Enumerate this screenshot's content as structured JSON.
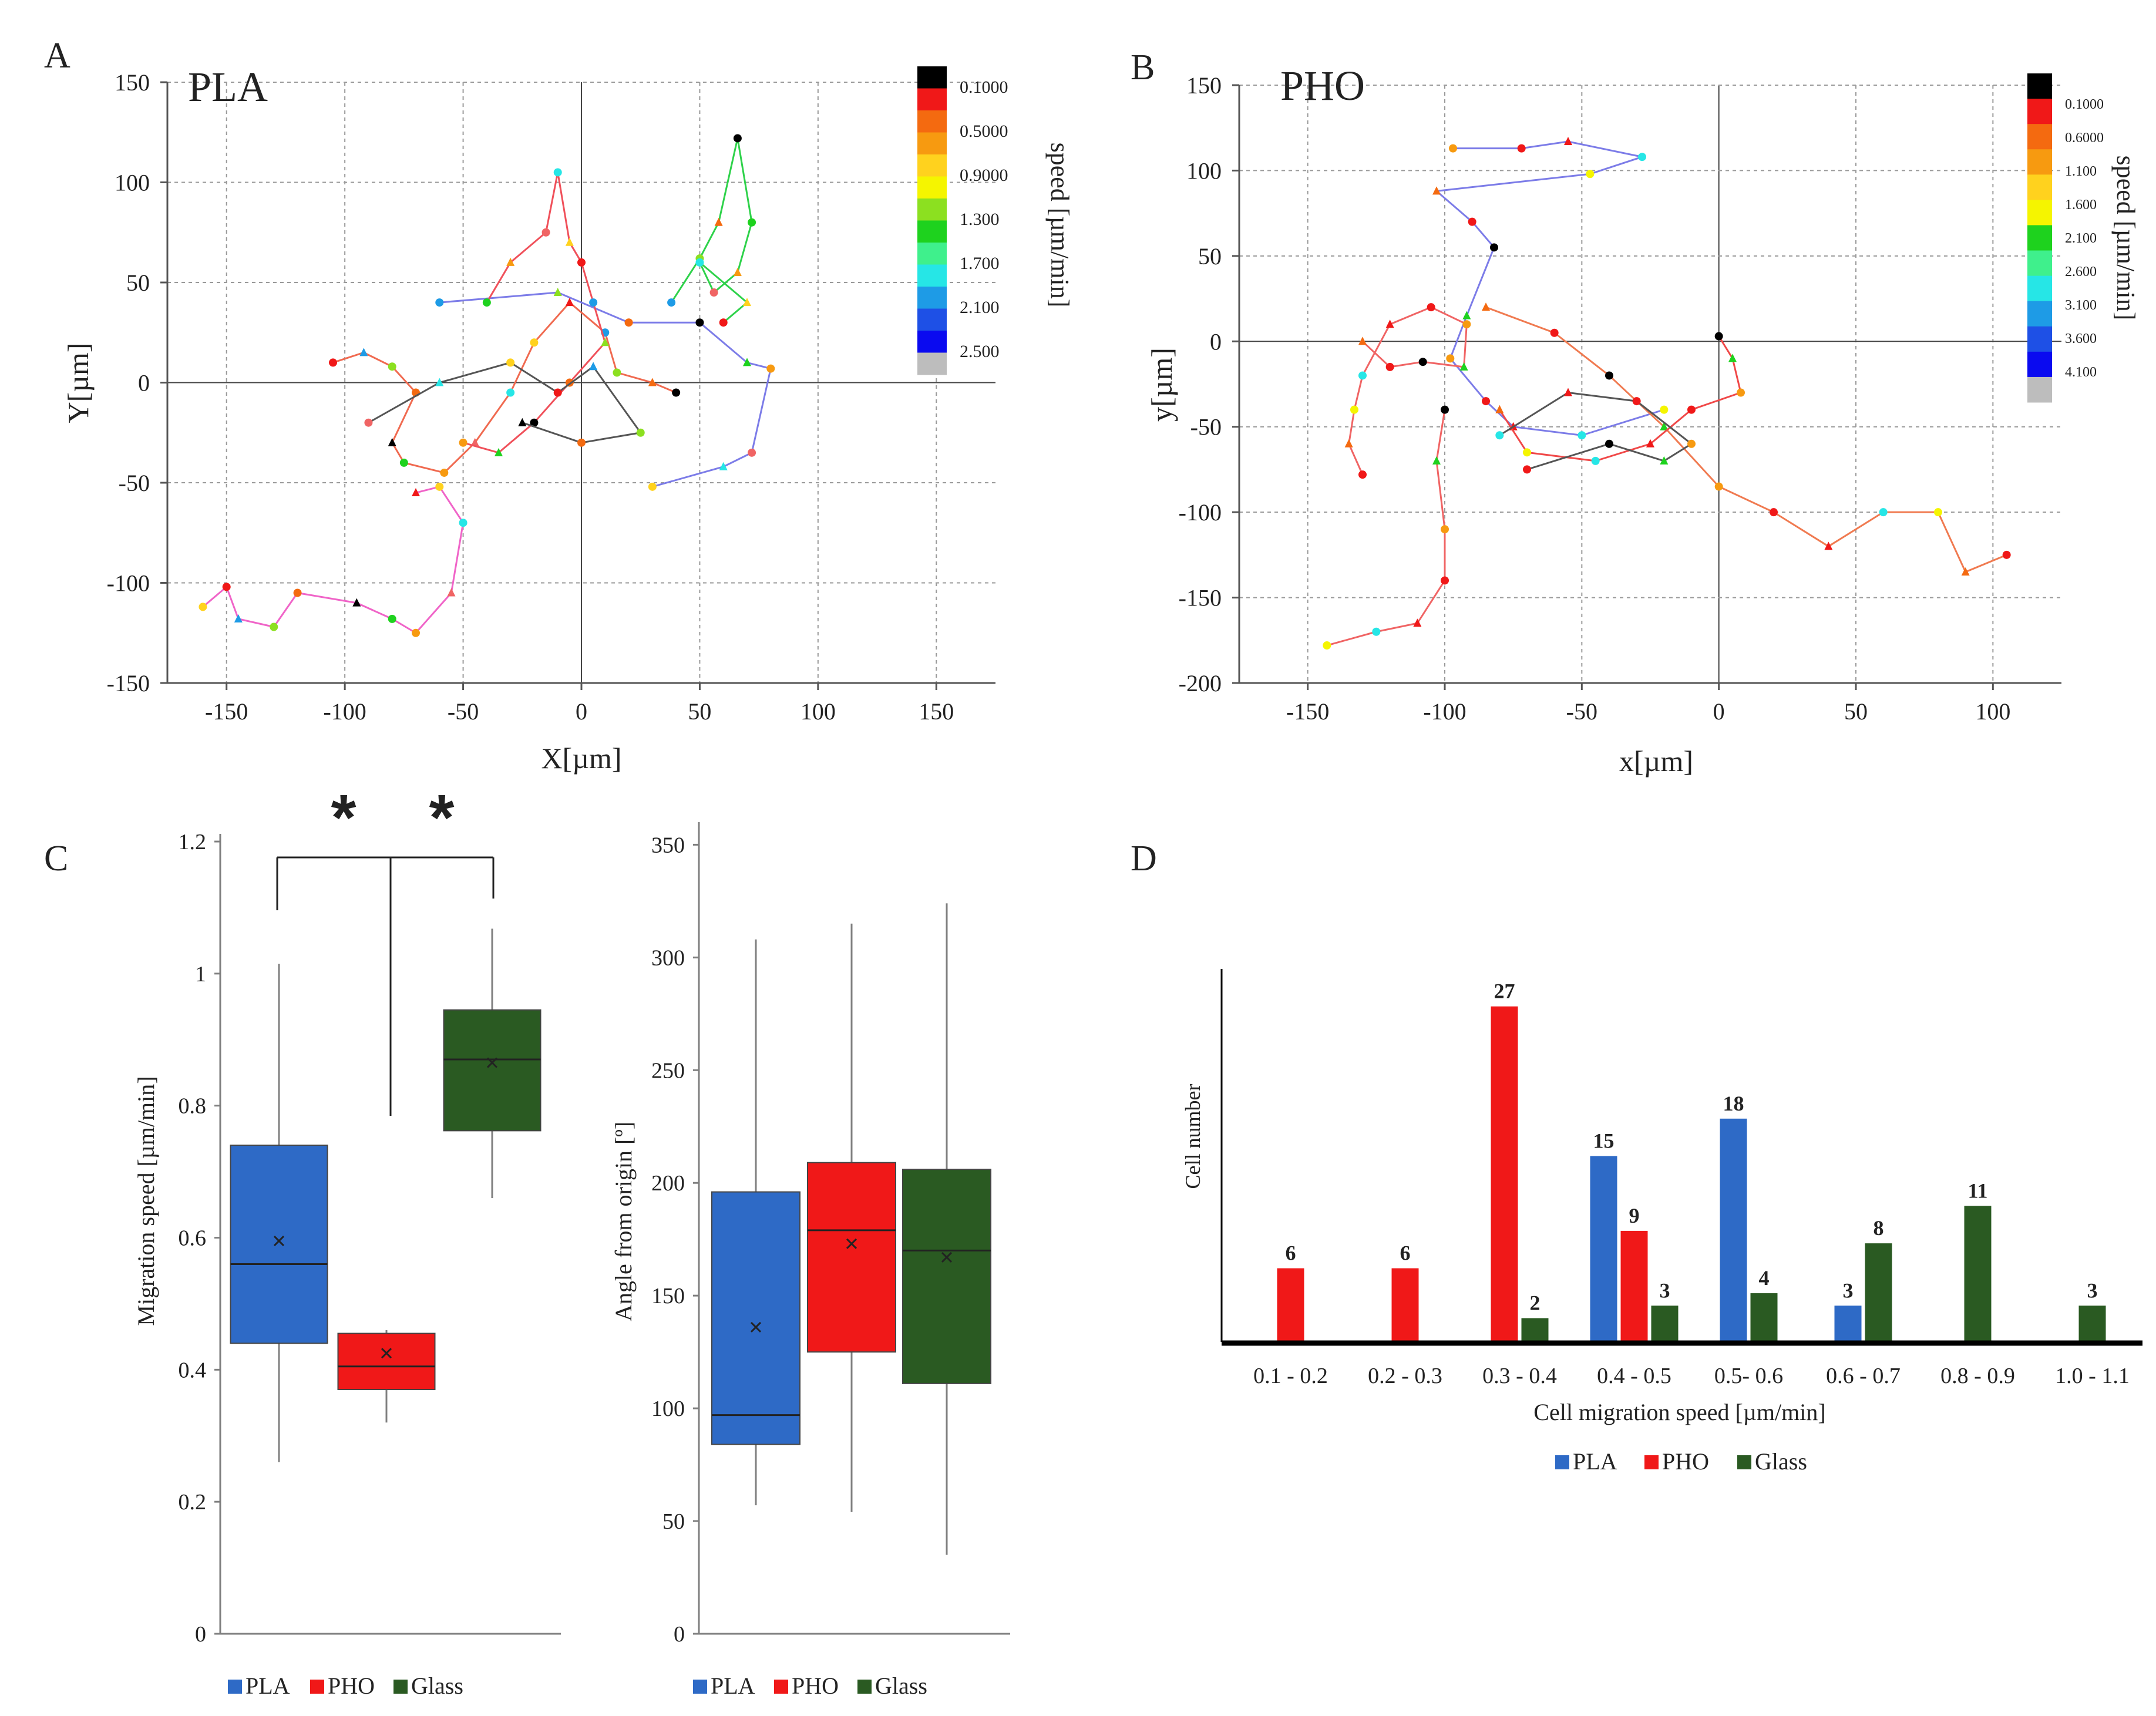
{
  "panels": {
    "A": {
      "letter": "A",
      "title": "PLA",
      "xlabel": "X[µm]",
      "ylabel": "Y[µm]",
      "xticks": [
        "-150",
        "-100",
        "-50",
        "0",
        "50",
        "100",
        "150"
      ],
      "yticks": [
        "150",
        "100",
        "50",
        "0",
        "-50",
        "-100",
        "-150"
      ],
      "colorbar_title": "speed [µm/min]",
      "colorbar_labels": [
        "0.1000",
        "0.5000",
        "0.9000",
        "1.300",
        "1.700",
        "2.100",
        "2.500"
      ]
    },
    "B": {
      "letter": "B",
      "title": "PHO",
      "xlabel": "x[µm]",
      "ylabel": "y[µm]",
      "xticks": [
        "-150",
        "-100",
        "-50",
        "0",
        "50",
        "100"
      ],
      "yticks": [
        "150",
        "100",
        "50",
        "0",
        "-50",
        "-100",
        "-150",
        "-200"
      ],
      "colorbar_title": "speed [µm/min]",
      "colorbar_labels": [
        "0.1000",
        "0.6000",
        "1.100",
        "1.600",
        "2.100",
        "2.600",
        "3.100",
        "3.600",
        "4.100"
      ]
    },
    "C": {
      "letter": "C",
      "ylabel_left": "Migration speed [µm/min]",
      "yticks_left": [
        "1.2",
        "1",
        "0.8",
        "0.6",
        "0.4",
        "0.2",
        "0"
      ],
      "ylabel_right": "Angle from origin [º]",
      "yticks_right": [
        "350",
        "300",
        "250",
        "200",
        "150",
        "100",
        "50",
        "0"
      ],
      "significance": [
        "*",
        "*"
      ],
      "legend_left": [
        "PLA",
        "PHO",
        "Glass"
      ],
      "legend_right": [
        "PLA",
        "PHO",
        "Glass"
      ]
    },
    "D": {
      "letter": "D",
      "ylabel": "Cell number",
      "xlabel": "Cell migration speed [µm/min]",
      "legend": [
        "PLA",
        "PHO",
        "Glass"
      ]
    }
  },
  "colors": {
    "PLA": "#2e6ac6",
    "PHO": "#f01818",
    "Glass": "#2a5a22",
    "colorbar_A": [
      "#000000",
      "#f01818",
      "#f46a10",
      "#f79a10",
      "#ffd21e",
      "#f5f500",
      "#8ce020",
      "#1ed21e",
      "#3ff08c",
      "#26e6e6",
      "#1e9be6",
      "#1e50e6",
      "#0a0af0",
      "#bdbdbd"
    ],
    "colorbar_B": [
      "#000000",
      "#f01818",
      "#f46a10",
      "#f79a10",
      "#ffd21e",
      "#f5f500",
      "#1ed21e",
      "#3ff08c",
      "#26e6e6",
      "#1e9be6",
      "#1e50e6",
      "#0a0af0",
      "#bdbdbd"
    ]
  },
  "chart_data": [
    {
      "id": "A",
      "type": "scatter",
      "title": "PLA",
      "xlabel": "X[µm]",
      "ylabel": "Y[µm]",
      "xlim": [
        -175,
        175
      ],
      "ylim": [
        -150,
        150
      ],
      "grid": true,
      "series": [
        {
          "name": "pink track",
          "color": "#f064c8",
          "points": [
            [
              -160,
              -112
            ],
            [
              -150,
              -102
            ],
            [
              -145,
              -118
            ],
            [
              -130,
              -122
            ],
            [
              -120,
              -105
            ],
            [
              -95,
              -110
            ],
            [
              -80,
              -118
            ],
            [
              -70,
              -125
            ],
            [
              -55,
              -105
            ],
            [
              -50,
              -70
            ],
            [
              -60,
              -52
            ],
            [
              -70,
              -55
            ]
          ]
        },
        {
          "name": "green track",
          "color": "#2ed24a",
          "points": [
            [
              38,
              40
            ],
            [
              50,
              62
            ],
            [
              58,
              80
            ],
            [
              66,
              122
            ],
            [
              72,
              80
            ],
            [
              66,
              55
            ],
            [
              56,
              45
            ],
            [
              50,
              60
            ],
            [
              70,
              40
            ],
            [
              60,
              30
            ]
          ]
        },
        {
          "name": "blue track",
          "color": "#7c7ce8",
          "points": [
            [
              -60,
              40
            ],
            [
              -10,
              45
            ],
            [
              20,
              30
            ],
            [
              50,
              30
            ],
            [
              70,
              10
            ],
            [
              80,
              7
            ],
            [
              72,
              -35
            ],
            [
              60,
              -42
            ],
            [
              30,
              -52
            ]
          ]
        },
        {
          "name": "red-orange track 1",
          "color": "#f06a50",
          "points": [
            [
              -105,
              10
            ],
            [
              -92,
              15
            ],
            [
              -80,
              8
            ],
            [
              -70,
              -5
            ],
            [
              -80,
              -30
            ],
            [
              -75,
              -40
            ],
            [
              -58,
              -45
            ],
            [
              -45,
              -30
            ],
            [
              -30,
              -5
            ],
            [
              -20,
              20
            ],
            [
              -5,
              40
            ],
            [
              10,
              25
            ],
            [
              15,
              5
            ],
            [
              30,
              0
            ],
            [
              40,
              -5
            ]
          ]
        },
        {
          "name": "red-orange track 2",
          "color": "#f0505a",
          "points": [
            [
              -40,
              40
            ],
            [
              -30,
              60
            ],
            [
              -15,
              75
            ],
            [
              -10,
              105
            ],
            [
              -5,
              70
            ],
            [
              0,
              60
            ],
            [
              5,
              40
            ],
            [
              10,
              20
            ],
            [
              -5,
              0
            ],
            [
              -20,
              -20
            ],
            [
              -35,
              -35
            ],
            [
              -50,
              -30
            ]
          ]
        },
        {
          "name": "gray track",
          "color": "#555555",
          "points": [
            [
              -90,
              -20
            ],
            [
              -60,
              0
            ],
            [
              -30,
              10
            ],
            [
              -10,
              -5
            ],
            [
              5,
              8
            ],
            [
              25,
              -25
            ],
            [
              0,
              -30
            ],
            [
              -25,
              -20
            ]
          ]
        }
      ]
    },
    {
      "id": "B",
      "type": "scatter",
      "title": "PHO",
      "xlabel": "x[µm]",
      "ylabel": "y[µm]",
      "xlim": [
        -175,
        125
      ],
      "ylim": [
        -200,
        150
      ],
      "grid": true,
      "series": [
        {
          "name": "blue track",
          "color": "#7c7ce8",
          "points": [
            [
              -97,
              113
            ],
            [
              -72,
              113
            ],
            [
              -55,
              117
            ],
            [
              -28,
              108
            ],
            [
              -47,
              98
            ],
            [
              -103,
              88
            ],
            [
              -90,
              70
            ],
            [
              -82,
              55
            ],
            [
              -92,
              15
            ],
            [
              -98,
              -10
            ],
            [
              -85,
              -35
            ],
            [
              -75,
              -50
            ],
            [
              -50,
              -55
            ],
            [
              -20,
              -40
            ]
          ]
        },
        {
          "name": "salmon track 1",
          "color": "#f06464",
          "points": [
            [
              -130,
              0
            ],
            [
              -120,
              -15
            ],
            [
              -108,
              -12
            ],
            [
              -93,
              -15
            ],
            [
              -92,
              10
            ],
            [
              -105,
              20
            ],
            [
              -120,
              10
            ],
            [
              -130,
              -20
            ],
            [
              -133,
              -40
            ],
            [
              -135,
              -60
            ],
            [
              -130,
              -78
            ]
          ]
        },
        {
          "name": "salmon track 2",
          "color": "#f06464",
          "points": [
            [
              -100,
              -40
            ],
            [
              -103,
              -70
            ],
            [
              -100,
              -110
            ],
            [
              -100,
              -140
            ],
            [
              -110,
              -165
            ],
            [
              -125,
              -170
            ],
            [
              -143,
              -178
            ]
          ]
        },
        {
          "name": "orange track",
          "color": "#f07a50",
          "points": [
            [
              -85,
              20
            ],
            [
              -60,
              5
            ],
            [
              -40,
              -20
            ],
            [
              -20,
              -50
            ],
            [
              0,
              -85
            ],
            [
              20,
              -100
            ],
            [
              40,
              -120
            ],
            [
              60,
              -100
            ],
            [
              80,
              -100
            ],
            [
              90,
              -135
            ],
            [
              105,
              -125
            ]
          ]
        },
        {
          "name": "red track",
          "color": "#f04848",
          "points": [
            [
              0,
              3
            ],
            [
              5,
              -10
            ],
            [
              8,
              -30
            ],
            [
              -10,
              -40
            ],
            [
              -25,
              -60
            ],
            [
              -45,
              -70
            ],
            [
              -70,
              -65
            ],
            [
              -80,
              -40
            ]
          ]
        },
        {
          "name": "gray track",
          "color": "#555555",
          "points": [
            [
              -70,
              -75
            ],
            [
              -40,
              -60
            ],
            [
              -20,
              -70
            ],
            [
              -10,
              -60
            ],
            [
              -30,
              -35
            ],
            [
              -55,
              -30
            ],
            [
              -80,
              -55
            ]
          ]
        }
      ]
    },
    {
      "id": "C-left",
      "type": "box",
      "ylabel": "Migration speed [µm/min]",
      "ylim": [
        0,
        1.2
      ],
      "categories": [
        "PLA",
        "PHO",
        "Glass"
      ],
      "boxes": [
        {
          "name": "PLA",
          "min": 0.26,
          "q1": 0.44,
          "median": 0.56,
          "q3": 0.74,
          "max": 1.015,
          "mean": 0.595
        },
        {
          "name": "PHO",
          "min": 0.32,
          "q1": 0.37,
          "median": 0.405,
          "q3": 0.455,
          "max": 0.46,
          "mean": 0.425
        },
        {
          "name": "Glass",
          "min": 0.66,
          "q1": 0.762,
          "median": 0.87,
          "q3": 0.945,
          "max": 1.068,
          "mean": 0.865
        }
      ],
      "annotations": [
        "*",
        "*"
      ]
    },
    {
      "id": "C-right",
      "type": "box",
      "ylabel": "Angle from origin [º]",
      "ylim": [
        0,
        360
      ],
      "categories": [
        "PLA",
        "PHO",
        "Glass"
      ],
      "boxes": [
        {
          "name": "PLA",
          "min": 57,
          "q1": 84,
          "median": 97,
          "q3": 196,
          "max": 308,
          "mean": 136
        },
        {
          "name": "PHO",
          "min": 54,
          "q1": 125,
          "median": 179,
          "q3": 209,
          "max": 315,
          "mean": 173
        },
        {
          "name": "Glass",
          "min": 35,
          "q1": 111,
          "median": 170,
          "q3": 206,
          "max": 324,
          "mean": 167
        }
      ]
    },
    {
      "id": "D",
      "type": "bar",
      "xlabel": "Cell migration speed [µm/min]",
      "ylabel": "Cell number",
      "categories": [
        "0.1 - 0.2",
        "0.2 - 0.3",
        "0.3 - 0.4",
        "0.4 - 0.5",
        "0.5- 0.6",
        "0.6 - 0.7",
        "0.8  - 0.9",
        "1.0 - 1.1"
      ],
      "series": [
        {
          "name": "PLA",
          "values": [
            0,
            0,
            0,
            15,
            18,
            3,
            0,
            0
          ]
        },
        {
          "name": "PHO",
          "values": [
            6,
            6,
            27,
            9,
            0,
            0,
            0,
            0
          ]
        },
        {
          "name": "Glass",
          "values": [
            0,
            0,
            2,
            3,
            4,
            8,
            11,
            3
          ]
        }
      ],
      "bar_labels": [
        {
          "category": "0.1 - 0.2",
          "series": "PHO",
          "text": "6"
        },
        {
          "category": "0.2 - 0.3",
          "series": "PHO",
          "text": "6"
        },
        {
          "category": "0.3 - 0.4",
          "series": "PHO",
          "text": "27"
        },
        {
          "category": "0.3 - 0.4",
          "series": "Glass",
          "text": "2"
        },
        {
          "category": "0.4 - 0.5",
          "series": "PLA",
          "text": "15"
        },
        {
          "category": "0.4 - 0.5",
          "series": "PHO",
          "text": "9"
        },
        {
          "category": "0.4 - 0.5",
          "series": "Glass",
          "text": "3"
        },
        {
          "category": "0.5- 0.6",
          "series": "PLA",
          "text": "18"
        },
        {
          "category": "0.5- 0.6",
          "series": "Glass",
          "text": "4"
        },
        {
          "category": "0.6 - 0.7",
          "series": "PLA",
          "text": "3"
        },
        {
          "category": "0.6 - 0.7",
          "series": "Glass",
          "text": "8"
        },
        {
          "category": "0.8  - 0.9",
          "series": "Glass",
          "text": "11"
        },
        {
          "category": "1.0 - 1.1",
          "series": "Glass",
          "text": "3"
        }
      ]
    }
  ]
}
